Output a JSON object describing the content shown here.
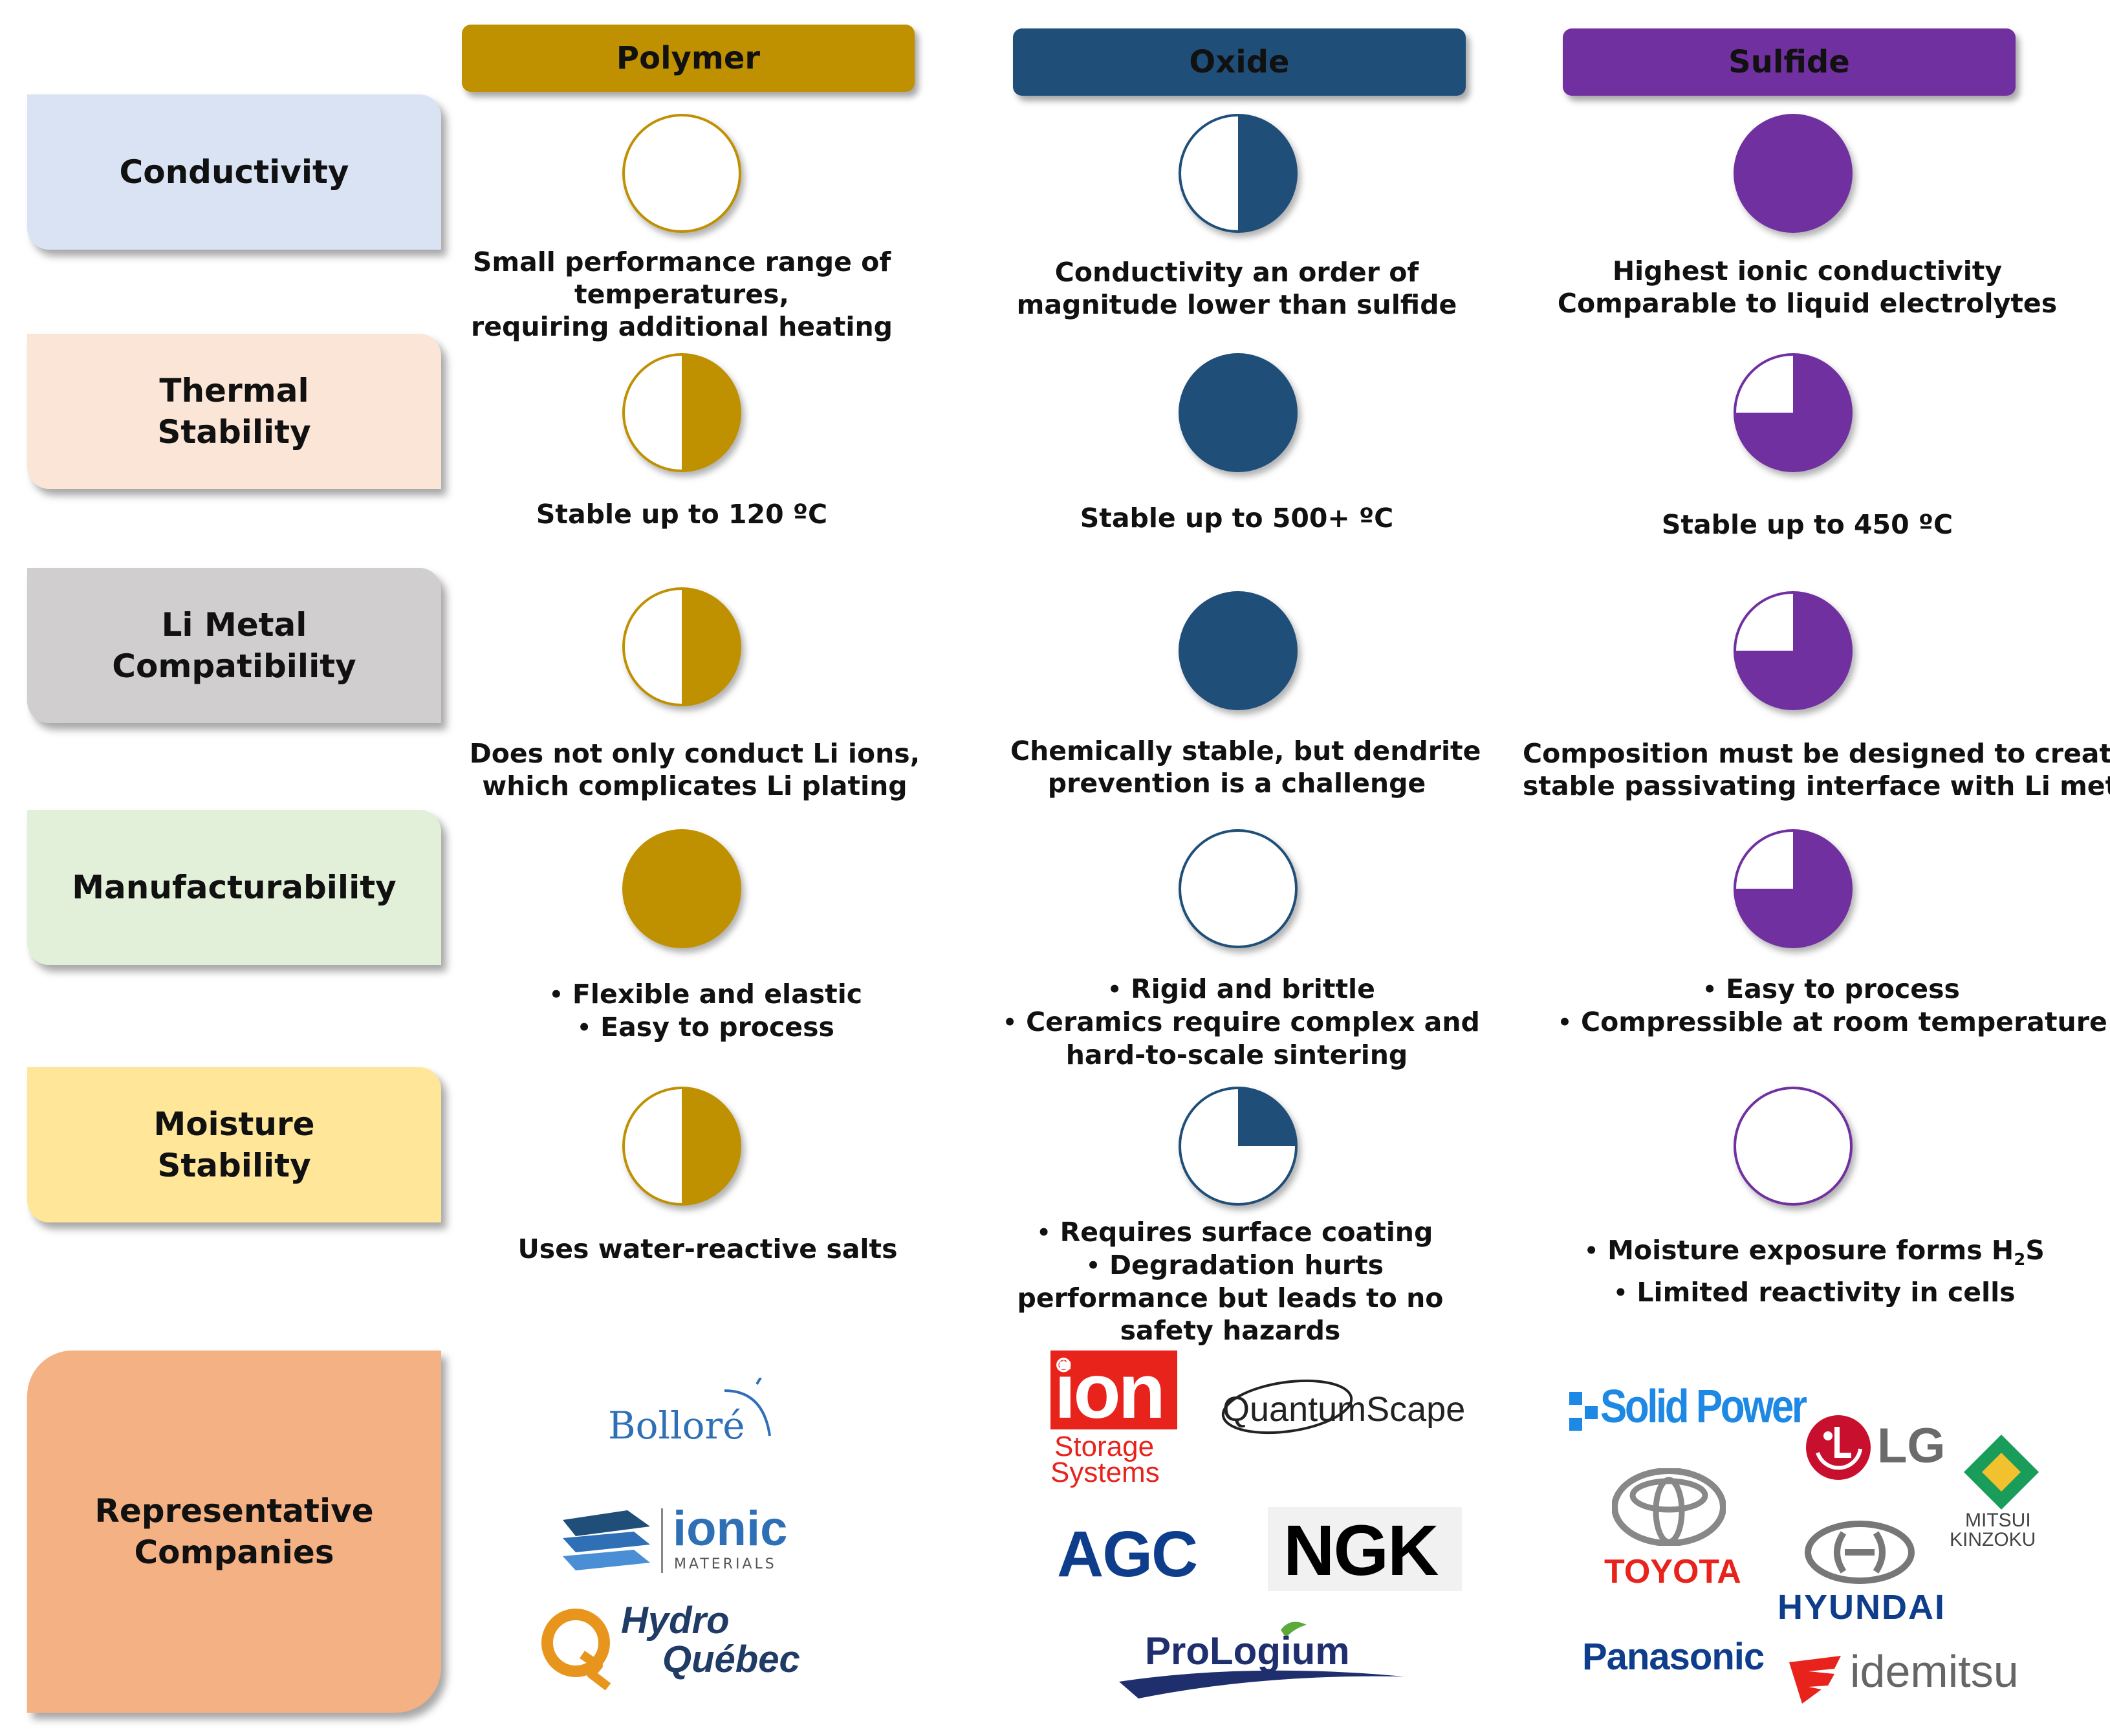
{
  "colors": {
    "polymer": "#BF9000",
    "oxide": "#1F4E79",
    "sulfide": "#7030A0",
    "row_conductivity": "#DAE3F3",
    "row_thermal": "#FBE5D6",
    "row_li_metal": "#D0CECE",
    "row_manufacturability": "#E2F0D9",
    "row_moisture": "#FFE699",
    "row_companies": "#F4B183"
  },
  "columns": [
    {
      "id": "polymer",
      "label": "Polymer"
    },
    {
      "id": "oxide",
      "label": "Oxide"
    },
    {
      "id": "sulfide",
      "label": "Sulfide"
    }
  ],
  "rows": [
    {
      "label": "Conductivity",
      "cells": [
        {
          "score": 0,
          "lines": [
            "Small performance range of",
            "temperatures,",
            "requiring additional heating"
          ]
        },
        {
          "score": 0.5,
          "lines": [
            "Conductivity an order of",
            "magnitude lower than sulfide"
          ]
        },
        {
          "score": 1,
          "lines": [
            "Highest ionic conductivity",
            "Comparable to liquid electrolytes"
          ]
        }
      ]
    },
    {
      "label": "Thermal\nStability",
      "cells": [
        {
          "score": 0.5,
          "lines": [
            "Stable up to 120 ºC"
          ]
        },
        {
          "score": 1,
          "lines": [
            "Stable up to 500+ ºC"
          ]
        },
        {
          "score": 0.75,
          "lines": [
            "Stable up to 450 ºC"
          ]
        }
      ]
    },
    {
      "label": "Li Metal\nCompatibility",
      "cells": [
        {
          "score": 0.5,
          "lines": [
            "Does not only conduct Li ions,",
            "which complicates Li plating"
          ]
        },
        {
          "score": 1,
          "lines": [
            "Chemically stable, but dendrite",
            "prevention is a challenge"
          ]
        },
        {
          "score": 0.75,
          "lines": [
            "Composition must be designed to create",
            "stable passivating interface with Li metal"
          ]
        }
      ]
    },
    {
      "label": "Manufacturability",
      "cells": [
        {
          "score": 1,
          "bullets": [
            "Flexible and elastic",
            "Easy to process"
          ]
        },
        {
          "score": 0,
          "bullets": [
            "Rigid and brittle",
            "Ceramics require complex and"
          ],
          "lines": [
            "hard-to-scale sintering"
          ]
        },
        {
          "score": 0.75,
          "bullets": [
            "Easy to process",
            "Compressible at room temperature"
          ]
        }
      ]
    },
    {
      "label": "Moisture\nStability",
      "cells": [
        {
          "score": 0.5,
          "lines": [
            "Uses water-reactive salts"
          ]
        },
        {
          "score": 0.25,
          "bullets": [
            "Requires surface coating",
            "Degradation hurts"
          ],
          "lines": [
            "performance but leads to no",
            "safety hazards"
          ]
        },
        {
          "score": 0,
          "bullets": [
            "Moisture exposure forms H",
            "Limited reactivity in cells"
          ],
          "h2s_tail": "S",
          "h2s_sub": "2"
        }
      ]
    }
  ],
  "companies_label": "Representative\nCompanies",
  "companies": {
    "polymer": {
      "bollore": "Bolloré",
      "ionic": "ionic",
      "ionic_sub": "MATERIALS",
      "hydro1": "Hydro",
      "hydro2": "Québec"
    },
    "oxide": {
      "ion1": "ion",
      "ion2": "Storage",
      "ion3": "Systems",
      "quantumscape": "QuantumScape",
      "agc": "AGC",
      "ngk": "NGK",
      "prologium": "ProLogium"
    },
    "sulfide": {
      "solidpower": "Solid Power",
      "lg": "LG",
      "mitsui1": "MITSUI",
      "mitsui2": "KINZOKU",
      "toyota": "TOYOTA",
      "hyundai": "HYUNDAI",
      "panasonic": "Panasonic",
      "idemitsu": "idemitsu"
    }
  }
}
